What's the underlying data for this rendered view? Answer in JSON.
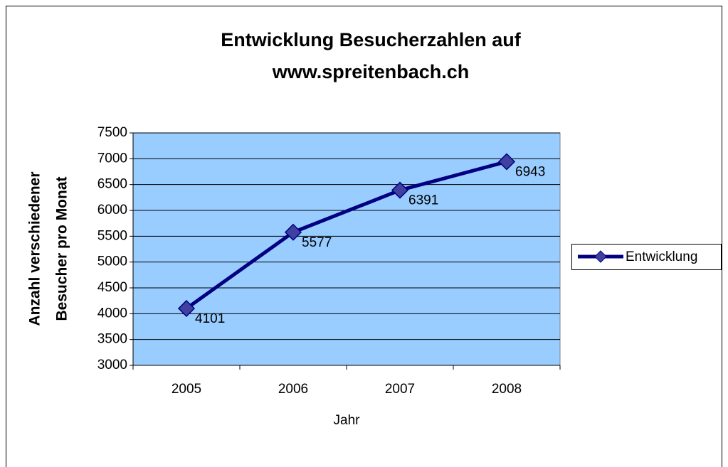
{
  "chart_data": {
    "type": "line",
    "title": [
      "Entwicklung Besucherzahlen auf",
      "www.spreitenbach.ch"
    ],
    "y_label": [
      "Anzahl verschiedener",
      "Besucher pro Monat"
    ],
    "x_label": "Jahr",
    "categories": [
      "2005",
      "2006",
      "2007",
      "2008"
    ],
    "series": [
      {
        "name": "Entwicklung",
        "color": "#000080",
        "marker_color": "#4040a0",
        "values": [
          4101,
          5577,
          6391,
          6943
        ]
      }
    ],
    "ylim": [
      3000,
      7500
    ],
    "yticks": [
      3000,
      3500,
      4000,
      4500,
      5000,
      5500,
      6000,
      6500,
      7000,
      7500
    ],
    "grid": true,
    "plot_background": "#99ccff",
    "legend": "right"
  }
}
